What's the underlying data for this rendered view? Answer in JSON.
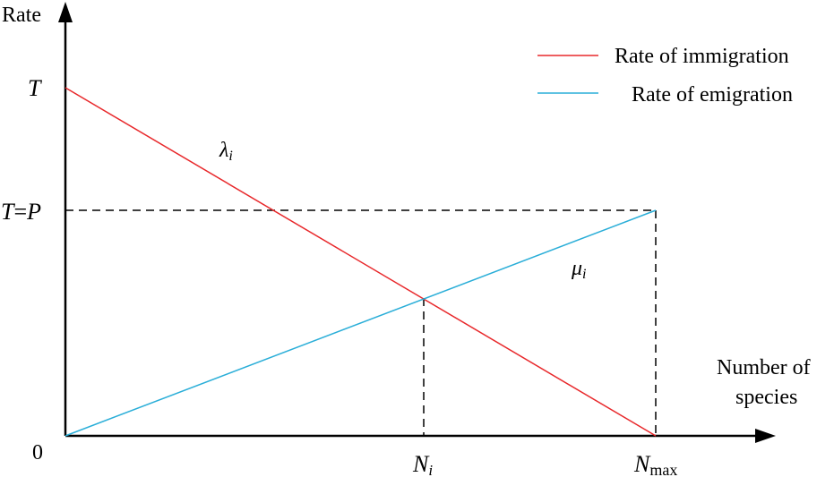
{
  "axes": {
    "y_title": "Rate",
    "x_title_line1": "Number of",
    "x_title_line2": "species",
    "origin_label": "0"
  },
  "y_ticks": {
    "T": "T",
    "TP_T": "T",
    "TP_eq": "=",
    "TP_P": "P"
  },
  "x_ticks": {
    "Ni_main": "N",
    "Ni_sub": "i",
    "Nmax_main": "N",
    "Nmax_sub": "max"
  },
  "curves": {
    "lambda_main": "λ",
    "lambda_sub": "i",
    "mu_main": "μ",
    "mu_sub": "i"
  },
  "legend": {
    "immigration": "Rate of immigration",
    "emigration": "Rate of emigration"
  },
  "colors": {
    "immigration": "#e8282b",
    "emigration": "#2aaed8",
    "axis": "#000000"
  }
}
